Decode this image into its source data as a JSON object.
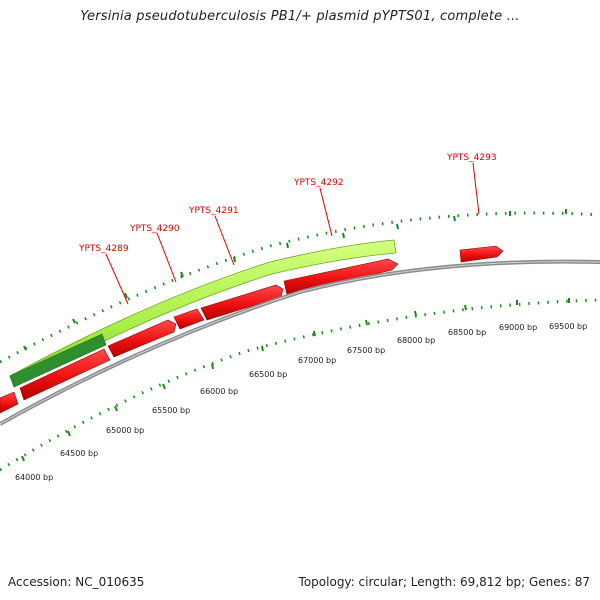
{
  "header": {
    "title": "Yersinia pseudotuberculosis PB1/+ plasmid pYPTS01, complete ..."
  },
  "footer": {
    "accession": "Accession: NC_010635",
    "summary": "Topology: circular; Length: 69,812 bp; Genes: 87"
  },
  "map": {
    "colors": {
      "backbone": "#8c8c8c",
      "gene": "#ee1111",
      "gene_dark": "#b00000",
      "cds_band": "#a8ee44",
      "cds_band_dark": "#2f8f2f",
      "ticks": "#1a8a1a",
      "label": "#e00000"
    },
    "position_labels": [
      "64000 bp",
      "64500 bp",
      "65000 bp",
      "65500 bp",
      "66000 bp",
      "66500 bp",
      "67000 bp",
      "67500 bp",
      "68000 bp",
      "68500 bp",
      "69000 bp",
      "69500 bp"
    ],
    "gene_labels": [
      "YPTS_4289",
      "YPTS_4290",
      "YPTS_4291",
      "YPTS_4292",
      "YPTS_4293"
    ]
  }
}
